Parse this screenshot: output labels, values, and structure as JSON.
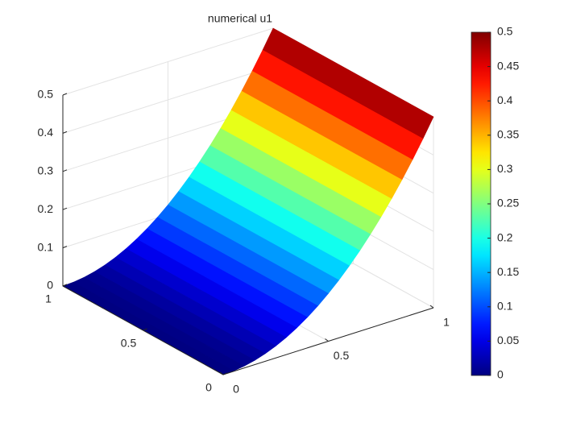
{
  "chart_data": {
    "type": "surface",
    "title": "numerical u1",
    "x": [
      0,
      0.05,
      0.1,
      0.15,
      0.2,
      0.25,
      0.3,
      0.35,
      0.4,
      0.45,
      0.5,
      0.55,
      0.6,
      0.65,
      0.7,
      0.75,
      0.8,
      0.85,
      0.9,
      0.95,
      1
    ],
    "values": [
      0,
      0.00125,
      0.005,
      0.01125,
      0.02,
      0.03125,
      0.045,
      0.06125,
      0.08,
      0.10125,
      0.125,
      0.15125,
      0.18,
      0.21125,
      0.245,
      0.28125,
      0.32,
      0.36125,
      0.405,
      0.45125,
      0.5
    ],
    "xlim": [
      0,
      1
    ],
    "ylim": [
      0,
      1
    ],
    "zlim": [
      0,
      0.5
    ],
    "xticks": [
      0,
      0.5,
      1
    ],
    "yticks": [
      0,
      0.5,
      1
    ],
    "zticks": [
      0,
      0.1,
      0.2,
      0.3,
      0.4,
      0.5
    ],
    "colormap": "jet",
    "clim": [
      0,
      0.5
    ],
    "colorbar_ticks": [
      0,
      0.05,
      0.1,
      0.15,
      0.2,
      0.25,
      0.3,
      0.35,
      0.4,
      0.45,
      0.5
    ],
    "grid": true
  }
}
